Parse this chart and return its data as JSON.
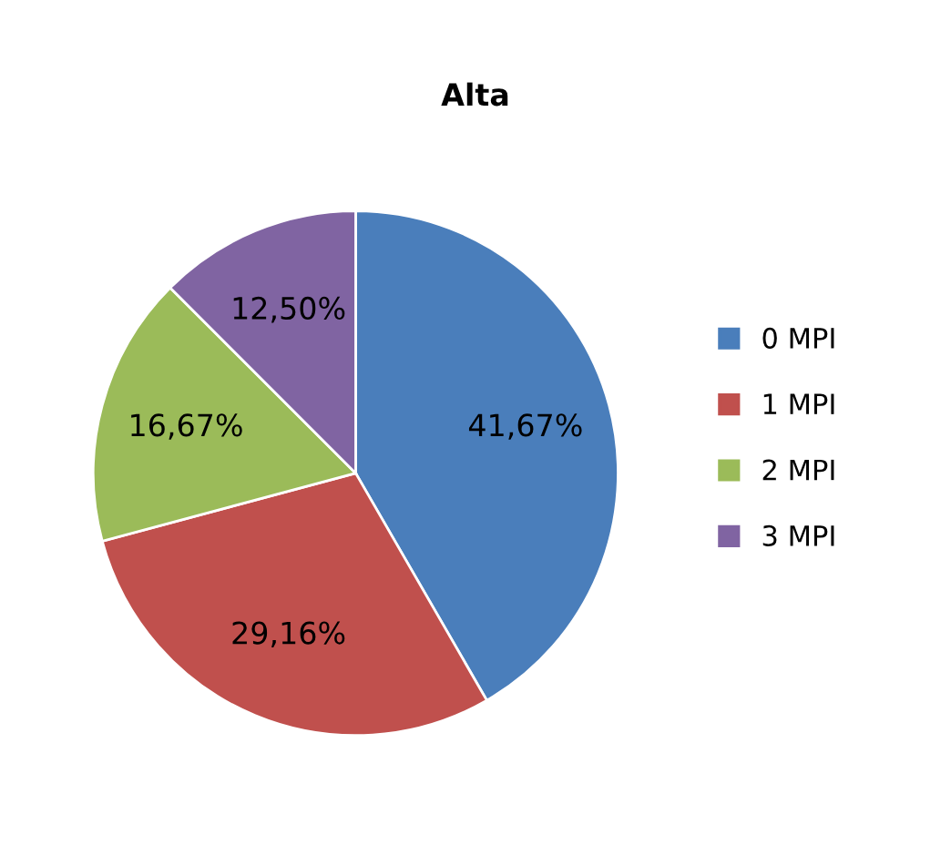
{
  "chart_data": {
    "type": "pie",
    "title": "Alta",
    "categories": [
      "0 MPI",
      "1 MPI",
      "2 MPI",
      "3 MPI"
    ],
    "values": [
      41.67,
      29.16,
      16.67,
      12.5
    ],
    "value_labels": [
      "41,67%",
      "29,16%",
      "16,67%",
      "12,50%"
    ],
    "colors": [
      "#4a7ebb",
      "#c0504d",
      "#9bbb59",
      "#8064a2"
    ],
    "legend": "right"
  }
}
